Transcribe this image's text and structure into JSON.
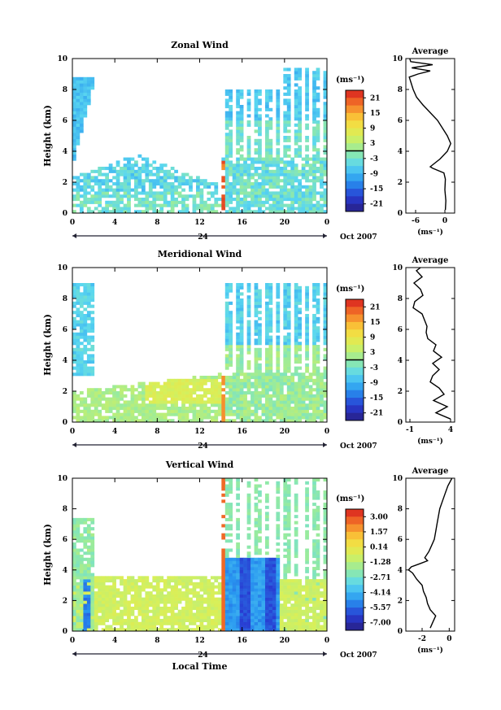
{
  "chart_data": [
    {
      "type": "heatmap",
      "title": "Zonal Wind",
      "xlabel": "",
      "ylabel": "Height (km)",
      "xlim": [
        0,
        24
      ],
      "ylim": [
        0,
        10
      ],
      "x_ticks": [
        "0",
        "4",
        "8",
        "12",
        "16",
        "20",
        "0"
      ],
      "y_ticks": [
        "0",
        "2",
        "4",
        "6",
        "8",
        "10"
      ],
      "date_label": "24",
      "month_label": "Oct 2007",
      "colorbar": {
        "unit": "(ms⁻¹)",
        "ticks": [
          "21",
          "15",
          "9",
          "3",
          "-3",
          "-9",
          "-15",
          "-21"
        ],
        "range": [
          -24,
          24
        ]
      },
      "profile": {
        "title": "Average",
        "xlabel": "(ms⁻¹)",
        "x_ticks": [
          "-6",
          "0"
        ],
        "xlim": [
          -8,
          2
        ],
        "height": [
          0.2,
          0.8,
          1.5,
          2.2,
          2.6,
          2.9,
          3.0,
          3.5,
          4.0,
          4.5,
          5.0,
          5.5,
          6.0,
          6.5,
          7.0,
          7.5,
          8.0,
          8.5,
          8.8,
          9.0,
          9.2,
          9.4,
          9.6,
          9.8,
          10.0
        ],
        "values": [
          0.1,
          0.2,
          0.0,
          0.1,
          -0.2,
          -2.5,
          -3.0,
          -1.0,
          0.5,
          1.2,
          0.5,
          -0.5,
          -1.5,
          -3.0,
          -4.5,
          -5.8,
          -6.5,
          -7.0,
          -7.3,
          -5.5,
          -3.0,
          -6.8,
          -2.5,
          -7.0,
          -7.2
        ]
      }
    },
    {
      "type": "heatmap",
      "title": "Meridional Wind",
      "xlabel": "",
      "ylabel": "Height (km)",
      "xlim": [
        0,
        24
      ],
      "ylim": [
        0,
        10
      ],
      "x_ticks": [
        "0",
        "4",
        "8",
        "12",
        "16",
        "20",
        "0"
      ],
      "y_ticks": [
        "0",
        "2",
        "4",
        "6",
        "8",
        "10"
      ],
      "date_label": "24",
      "month_label": "Oct 2007",
      "colorbar": {
        "unit": "(ms⁻¹)",
        "ticks": [
          "21",
          "15",
          "9",
          "3",
          "-3",
          "-9",
          "-15",
          "-21"
        ],
        "range": [
          -24,
          24
        ]
      },
      "profile": {
        "title": "Average",
        "xlabel": "(ms⁻¹)",
        "x_ticks": [
          "-1",
          "4"
        ],
        "xlim": [
          -1.5,
          4.5
        ],
        "height": [
          0.2,
          0.6,
          1.0,
          1.4,
          1.8,
          2.2,
          2.6,
          3.0,
          3.4,
          3.8,
          4.2,
          4.6,
          5.0,
          5.4,
          5.8,
          6.2,
          6.6,
          7.0,
          7.4,
          7.8,
          8.2,
          8.6,
          9.0,
          9.4,
          9.8,
          10.0
        ],
        "values": [
          4.0,
          2.2,
          3.6,
          1.9,
          3.2,
          2.6,
          1.5,
          1.8,
          2.6,
          1.8,
          2.9,
          1.9,
          2.2,
          1.2,
          1.0,
          1.1,
          0.8,
          0.5,
          -0.6,
          -0.4,
          0.6,
          0.3,
          -0.5,
          0.5,
          -0.2,
          0.3
        ]
      }
    },
    {
      "type": "heatmap",
      "title": "Vertical Wind",
      "xlabel": "Local Time",
      "ylabel": "Height (km)",
      "xlim": [
        0,
        24
      ],
      "ylim": [
        0,
        10
      ],
      "x_ticks": [
        "0",
        "4",
        "8",
        "12",
        "16",
        "20",
        "0"
      ],
      "y_ticks": [
        "0",
        "2",
        "4",
        "6",
        "8",
        "10"
      ],
      "date_label": "24",
      "month_label": "Oct 2007",
      "colorbar": {
        "unit": "(ms⁻¹)",
        "ticks": [
          "3.00",
          "1.57",
          "0.14",
          "-1.28",
          "-2.71",
          "-4.14",
          "-5.57",
          "-7.00"
        ],
        "range": [
          3.71,
          -7.71
        ]
      },
      "profile": {
        "title": "Average",
        "xlabel": "(ms⁻¹)",
        "x_ticks": [
          "-2",
          "0"
        ],
        "xlim": [
          -3.2,
          0.4
        ],
        "height": [
          0.2,
          0.6,
          1.0,
          1.4,
          1.8,
          2.2,
          2.6,
          3.0,
          3.4,
          3.8,
          4.0,
          4.2,
          4.4,
          4.6,
          4.8,
          5.2,
          5.6,
          6.0,
          6.5,
          7.0,
          7.5,
          8.0,
          8.5,
          9.0,
          9.5,
          10.0
        ],
        "values": [
          -1.4,
          -1.2,
          -1.0,
          -1.4,
          -1.6,
          -1.7,
          -1.9,
          -2.0,
          -2.4,
          -2.7,
          -3.0,
          -2.8,
          -2.2,
          -1.6,
          -1.8,
          -1.5,
          -1.3,
          -1.1,
          -1.0,
          -0.9,
          -0.8,
          -0.7,
          -0.5,
          -0.3,
          -0.1,
          0.2
        ]
      }
    }
  ]
}
